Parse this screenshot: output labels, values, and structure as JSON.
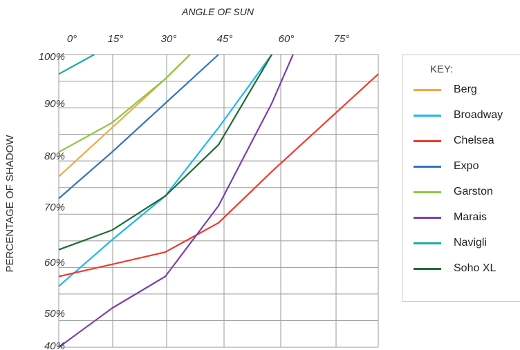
{
  "chart_data": {
    "type": "line",
    "title": "ANGLE OF SUN",
    "xlabel": "ANGLE OF SUN",
    "ylabel": "PERCENTAGE OF SHADOW",
    "x_ticks": [
      "0°",
      "15°",
      "30°",
      "45°",
      "60°",
      "75°"
    ],
    "y_ticks": [
      "100%",
      "90%",
      "80%",
      "70%",
      "60%",
      "50%",
      "40%"
    ],
    "xlim": [
      0,
      90
    ],
    "ylim": [
      40,
      100
    ],
    "grid": true,
    "legend_title": "KEY:",
    "legend_position": "right",
    "series": [
      {
        "name": "Berg",
        "color": "#f5a742",
        "x": [
          0,
          15,
          30,
          37
        ],
        "y": [
          75,
          85,
          95,
          100
        ]
      },
      {
        "name": "Broadway",
        "color": "#1fb6f0",
        "x": [
          0,
          15,
          30,
          45,
          60
        ],
        "y": [
          52.5,
          62,
          71,
          85,
          100
        ]
      },
      {
        "name": "Chelsea",
        "color": "#f03a2c",
        "x": [
          0,
          15,
          30,
          45,
          60,
          75,
          90
        ],
        "y": [
          54.5,
          57,
          59.5,
          65.5,
          76,
          86,
          96
        ]
      },
      {
        "name": "Expo",
        "color": "#2f74c0",
        "x": [
          0,
          15,
          30,
          45
        ],
        "y": [
          70.5,
          80,
          90,
          100
        ]
      },
      {
        "name": "Garston",
        "color": "#8dc63f",
        "x": [
          0,
          15,
          30,
          37
        ],
        "y": [
          80,
          86,
          95,
          100
        ]
      },
      {
        "name": "Marais",
        "color": "#7a3fb0",
        "x": [
          0,
          15,
          30,
          45,
          60,
          66
        ],
        "y": [
          40,
          48,
          54.5,
          69,
          90,
          100
        ]
      },
      {
        "name": "Navigli",
        "color": "#1aa9a8",
        "x": [
          0,
          10
        ],
        "y": [
          96,
          100
        ]
      },
      {
        "name": "Soho XL",
        "color": "#1e6b34",
        "x": [
          0,
          15,
          30,
          45,
          60
        ],
        "y": [
          60,
          64,
          71,
          81.5,
          100
        ]
      }
    ]
  }
}
